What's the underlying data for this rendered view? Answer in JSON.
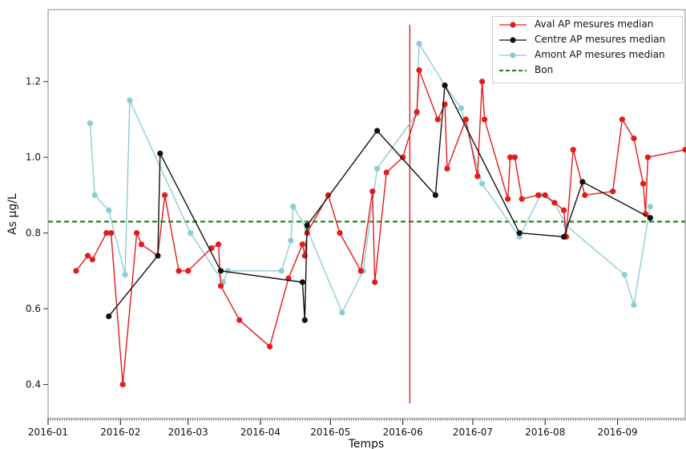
{
  "chart_data": {
    "type": "line",
    "xlabel": "Temps",
    "ylabel": "As µg/L",
    "xlim": [
      "2016-01-01",
      "2016-09-30"
    ],
    "ylim": [
      0.31,
      1.39
    ],
    "yticks": [
      0.4,
      0.6,
      0.8,
      1.0,
      1.2
    ],
    "xticks": [
      "2016-01",
      "2016-02",
      "2016-03",
      "2016-04",
      "2016-05",
      "2016-06",
      "2016-07",
      "2016-08",
      "2016-09"
    ],
    "grid": false,
    "legend_position": "top-right",
    "series": [
      {
        "name": "Aval AP mesures median",
        "color": "#e41a1c",
        "points": [
          [
            "2016-01-13",
            0.7
          ],
          [
            "2016-01-18",
            0.74
          ],
          [
            "2016-01-20",
            0.73
          ],
          [
            "2016-01-26",
            0.8
          ],
          [
            "2016-01-28",
            0.8
          ],
          [
            "2016-02-02",
            0.4
          ],
          [
            "2016-02-08",
            0.8
          ],
          [
            "2016-02-10",
            0.77
          ],
          [
            "2016-02-17",
            0.74
          ],
          [
            "2016-02-20",
            0.9
          ],
          [
            "2016-02-26",
            0.7
          ],
          [
            "2016-03-01",
            0.7
          ],
          [
            "2016-03-11",
            0.76
          ],
          [
            "2016-03-14",
            0.77
          ],
          [
            "2016-03-15",
            0.66
          ],
          [
            "2016-03-23",
            0.57
          ],
          [
            "2016-04-05",
            0.5
          ],
          [
            "2016-04-13",
            0.68
          ],
          [
            "2016-04-19",
            0.77
          ],
          [
            "2016-04-20",
            0.74
          ],
          [
            "2016-04-21",
            0.8
          ],
          [
            "2016-04-30",
            0.9
          ],
          [
            "2016-05-05",
            0.8
          ],
          [
            "2016-05-14",
            0.7
          ],
          [
            "2016-05-19",
            0.91
          ],
          [
            "2016-05-20",
            0.67
          ],
          [
            "2016-05-25",
            0.96
          ],
          [
            "2016-06-01",
            1.0
          ],
          [
            "2016-06-07",
            1.12
          ],
          [
            "2016-06-08",
            1.23
          ],
          [
            "2016-06-16",
            1.1
          ],
          [
            "2016-06-19",
            1.14
          ],
          [
            "2016-06-20",
            0.97
          ],
          [
            "2016-06-28",
            1.1
          ],
          [
            "2016-07-03",
            0.95
          ],
          [
            "2016-07-05",
            1.2
          ],
          [
            "2016-07-06",
            1.1
          ],
          [
            "2016-07-16",
            0.89
          ],
          [
            "2016-07-17",
            1.0
          ],
          [
            "2016-07-19",
            1.0
          ],
          [
            "2016-07-22",
            0.89
          ],
          [
            "2016-07-29",
            0.9
          ],
          [
            "2016-08-01",
            0.9
          ],
          [
            "2016-08-05",
            0.88
          ],
          [
            "2016-08-09",
            0.86
          ],
          [
            "2016-08-10",
            0.79
          ],
          [
            "2016-08-13",
            1.02
          ],
          [
            "2016-08-18",
            0.9
          ],
          [
            "2016-08-30",
            0.91
          ],
          [
            "2016-09-03",
            1.1
          ],
          [
            "2016-09-08",
            1.05
          ],
          [
            "2016-09-12",
            0.93
          ],
          [
            "2016-09-13",
            0.85
          ],
          [
            "2016-09-14",
            1.0
          ],
          [
            "2016-09-30",
            1.02
          ]
        ]
      },
      {
        "name": "Centre AP mesures median",
        "color": "#111111",
        "points": [
          [
            "2016-01-27",
            0.58
          ],
          [
            "2016-02-17",
            0.74
          ],
          [
            "2016-02-18",
            1.01
          ],
          [
            "2016-03-15",
            0.7
          ],
          [
            "2016-04-19",
            0.67
          ],
          [
            "2016-04-20",
            0.57
          ],
          [
            "2016-04-21",
            0.82
          ],
          [
            "2016-05-21",
            1.07
          ],
          [
            "2016-06-15",
            0.9
          ],
          [
            "2016-06-19",
            1.19
          ],
          [
            "2016-07-21",
            0.8
          ],
          [
            "2016-08-09",
            0.79
          ],
          [
            "2016-08-17",
            0.935
          ],
          [
            "2016-09-15",
            0.84
          ]
        ]
      },
      {
        "name": "Amont AP mesures median",
        "color": "#8ccdd4",
        "points": [
          [
            "2016-01-19",
            1.09
          ],
          [
            "2016-01-21",
            0.9
          ],
          [
            "2016-01-27",
            0.86
          ],
          [
            "2016-02-03",
            0.69
          ],
          [
            "2016-02-05",
            1.15
          ],
          [
            "2016-03-02",
            0.8
          ],
          [
            "2016-03-16",
            0.67
          ],
          [
            "2016-03-18",
            0.7
          ],
          [
            "2016-04-10",
            0.7
          ],
          [
            "2016-04-14",
            0.78
          ],
          [
            "2016-04-15",
            0.87
          ],
          [
            "2016-04-21",
            0.81
          ],
          [
            "2016-05-06",
            0.59
          ],
          [
            "2016-05-15",
            0.7
          ],
          [
            "2016-05-21",
            0.97
          ],
          [
            "2016-06-07",
            1.115
          ],
          [
            "2016-06-08",
            1.3
          ],
          [
            "2016-06-19",
            1.19
          ],
          [
            "2016-06-26",
            1.13
          ],
          [
            "2016-07-05",
            0.93
          ],
          [
            "2016-07-21",
            0.79
          ],
          [
            "2016-07-30",
            0.9
          ],
          [
            "2016-08-05",
            0.88
          ],
          [
            "2016-08-10",
            0.82
          ],
          [
            "2016-09-04",
            0.69
          ],
          [
            "2016-09-08",
            0.61
          ],
          [
            "2016-09-15",
            0.87
          ]
        ]
      }
    ],
    "reference_line": {
      "name": "Bon",
      "value": 0.83,
      "color": "#1a7f1a",
      "style": "dashed"
    },
    "vertical_marker": {
      "x": "2016-06-04",
      "y_range": [
        0.35,
        1.35
      ],
      "color": "#e41a1c"
    }
  }
}
